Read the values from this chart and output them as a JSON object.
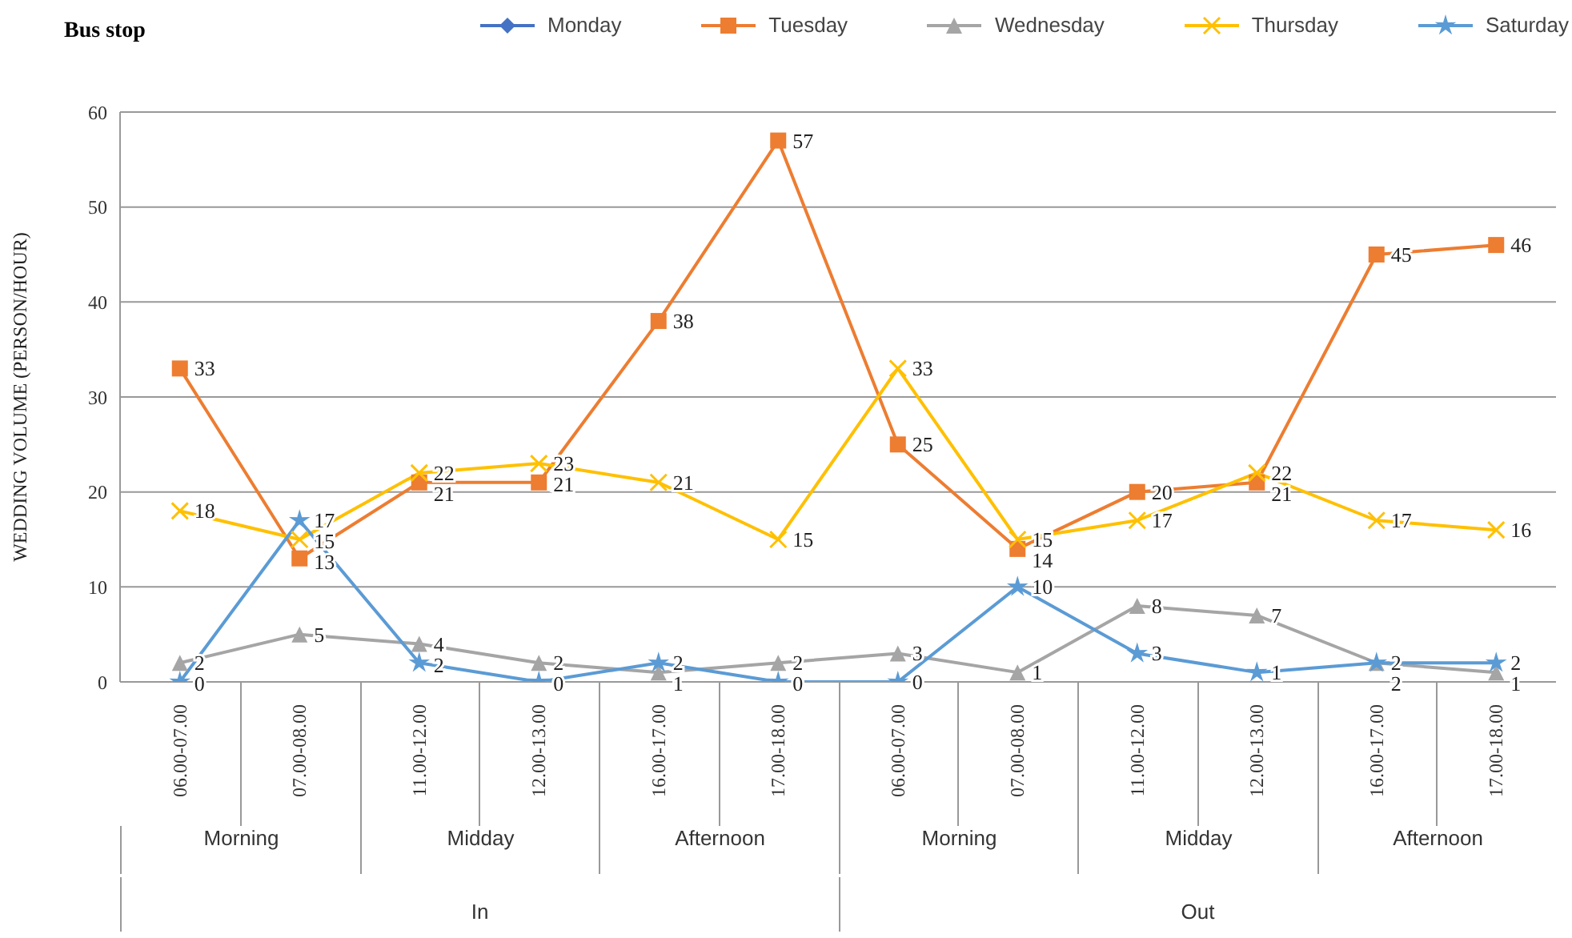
{
  "chart_data": {
    "type": "line",
    "title": "Bus stop",
    "ylabel": "WEDDING VOLUME (PERSON/HOUR)",
    "categories": [
      "06.00-07.00",
      "07.00-08.00",
      "11.00-12.00",
      "12.00-13.00",
      "16.00-17.00",
      "17.00-18.00",
      "06.00-07.00",
      "07.00-08.00",
      "11.00-12.00",
      "12.00-13.00",
      "16.00-17.00",
      "17.00-18.00"
    ],
    "annotations": [
      "Morning",
      "Midday",
      "Afternoon",
      "Morning",
      "Midday",
      "Afternoon",
      "In",
      "Out"
    ],
    "series": [
      {
        "name": "Monday",
        "color": "#4472c4",
        "marker": "diamond",
        "values": [
          null,
          null,
          null,
          null,
          null,
          null,
          null,
          null,
          null,
          null,
          null,
          null
        ]
      },
      {
        "name": "Tuesday",
        "color": "#ed7d31",
        "marker": "square",
        "values": [
          33,
          13,
          21,
          21,
          38,
          57,
          25,
          14,
          20,
          21,
          45,
          46
        ]
      },
      {
        "name": "Wednesday",
        "color": "#a5a5a5",
        "marker": "triangle",
        "values": [
          2,
          5,
          4,
          2,
          1,
          2,
          3,
          1,
          8,
          7,
          2,
          1
        ]
      },
      {
        "name": "Thursday",
        "color": "#ffc000",
        "marker": "cross",
        "values": [
          18,
          15,
          22,
          23,
          21,
          15,
          33,
          15,
          17,
          22,
          17,
          16
        ]
      },
      {
        "name": "Saturday",
        "color": "#5b9bd5",
        "marker": "star",
        "values": [
          0,
          17,
          2,
          0,
          2,
          0,
          0,
          10,
          3,
          1,
          2,
          2
        ]
      }
    ],
    "ylim": [
      0,
      60
    ],
    "yticks": [
      0,
      10,
      20,
      30,
      40,
      50,
      60
    ],
    "grid": "y",
    "legend": "top",
    "data_labels": true
  }
}
